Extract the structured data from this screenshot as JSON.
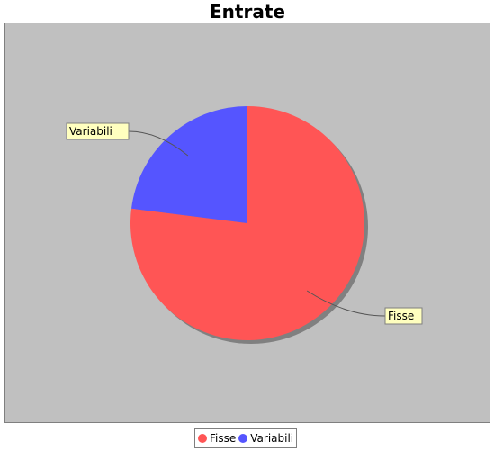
{
  "chart_data": {
    "type": "pie",
    "title": "Entrate",
    "slices": [
      {
        "label": "Fisse",
        "value": 77,
        "color": "#ff5555"
      },
      {
        "label": "Variabili",
        "value": 23,
        "color": "#5555ff"
      }
    ],
    "background": "#c0c0c0",
    "legend": "bottom-center"
  }
}
